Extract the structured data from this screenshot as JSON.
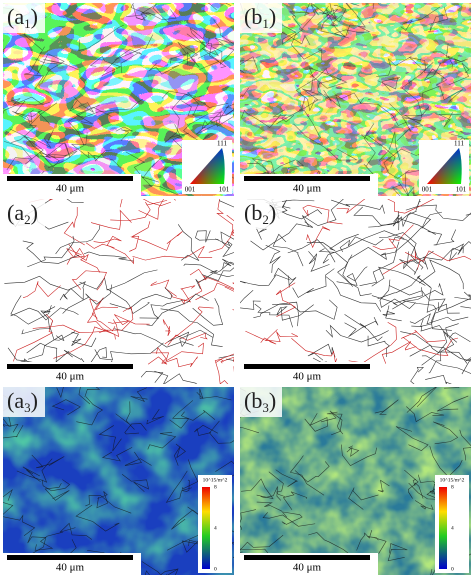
{
  "panels": [
    {
      "label": {
        "open": "(a",
        "sub": "1",
        "close": ")"
      },
      "scale_bar": "40 μm",
      "ipf_legend": {
        "top": "111",
        "left": "001",
        "right": "101"
      }
    },
    {
      "label": {
        "open": "(b",
        "sub": "1",
        "close": ")"
      },
      "scale_bar": "40 μm",
      "ipf_legend": {
        "top": "111",
        "left": "001",
        "right": "101"
      }
    },
    {
      "label": {
        "open": "(a",
        "sub": "2",
        "close": ")"
      },
      "scale_bar": "40 μm"
    },
    {
      "label": {
        "open": "(b",
        "sub": "2",
        "close": ")"
      },
      "scale_bar": "40 μm"
    },
    {
      "label": {
        "open": "(a",
        "sub": "3",
        "close": ")"
      },
      "scale_bar": "40 μm",
      "colorbar": {
        "unit": "10^15/m^2",
        "ticks": [
          "8",
          "4",
          "0"
        ]
      }
    },
    {
      "label": {
        "open": "(b",
        "sub": "3",
        "close": ")"
      },
      "scale_bar": "40 μm",
      "colorbar": {
        "unit": "10^15/m^2",
        "ticks": [
          "8",
          "4",
          "0"
        ]
      }
    }
  ]
}
